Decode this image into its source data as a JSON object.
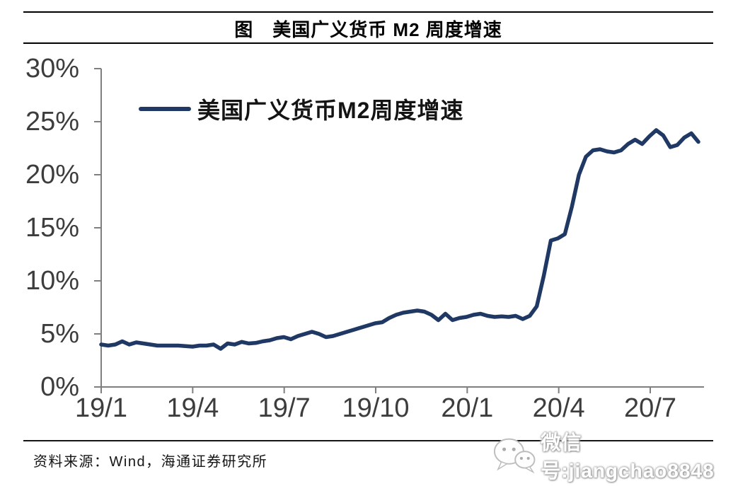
{
  "title": "图　美国广义货币 M2 周度增速",
  "legend": {
    "label": "美国广义货币M2周度增速"
  },
  "source": "资料来源：Wind，海通证券研究所",
  "watermark": {
    "icon": "wechat-icon",
    "text": "微信号:jiangchao8848"
  },
  "colors": {
    "line": "#1f3864",
    "axis": "#7f7f7f",
    "tick_label": "#3d3d3d",
    "title_text": "#000000",
    "watermark_halo": "#a0a0a0"
  },
  "chart_data": {
    "type": "line",
    "title": "美国广义货币M2周度增速",
    "frequency": "weekly",
    "x_range": "2019-01 to 2020-08",
    "x_tick_labels": [
      "19/1",
      "19/4",
      "19/7",
      "19/10",
      "20/1",
      "20/4",
      "20/7"
    ],
    "y_tick_labels": [
      "30%",
      "25%",
      "20%",
      "15%",
      "10%",
      "5%",
      "0%"
    ],
    "ylim": [
      0,
      30
    ],
    "y_unit": "%",
    "grid": false,
    "legend_position": "top-left",
    "series": [
      {
        "name": "美国广义货币M2周度增速",
        "values": [
          4.0,
          3.9,
          4.0,
          4.3,
          4.0,
          4.2,
          4.1,
          4.0,
          3.9,
          3.9,
          3.9,
          3.9,
          3.85,
          3.8,
          3.9,
          3.9,
          4.0,
          3.6,
          4.1,
          4.0,
          4.25,
          4.1,
          4.15,
          4.3,
          4.4,
          4.6,
          4.7,
          4.5,
          4.8,
          5.0,
          5.2,
          5.0,
          4.7,
          4.8,
          5.0,
          5.2,
          5.4,
          5.6,
          5.8,
          6.0,
          6.1,
          6.5,
          6.8,
          7.0,
          7.1,
          7.2,
          7.1,
          6.8,
          6.3,
          6.9,
          6.3,
          6.5,
          6.6,
          6.8,
          6.9,
          6.7,
          6.6,
          6.65,
          6.6,
          6.7,
          6.4,
          6.7,
          7.6,
          10.5,
          13.8,
          14.0,
          14.4,
          17.0,
          20.0,
          21.7,
          22.3,
          22.4,
          22.2,
          22.1,
          22.3,
          22.9,
          23.3,
          22.9,
          23.6,
          24.2,
          23.7,
          22.6,
          22.8,
          23.5,
          23.9,
          23.1
        ]
      }
    ]
  }
}
